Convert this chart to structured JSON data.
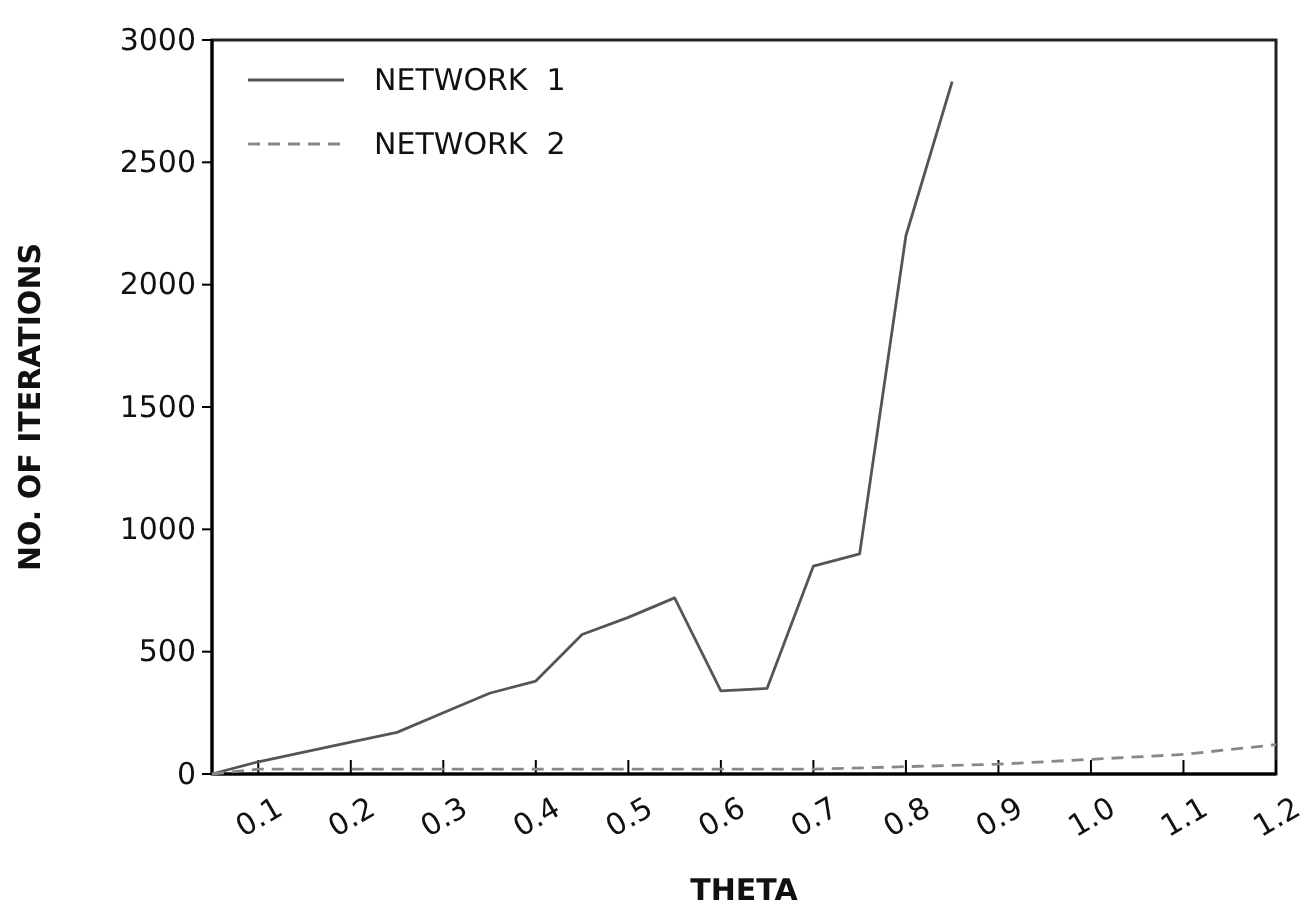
{
  "chart_data": {
    "type": "line",
    "xlabel": "THETA",
    "ylabel": "NO. OF ITERATIONS",
    "xlim": [
      0.05,
      1.2
    ],
    "xticks": [
      0.1,
      0.2,
      0.3,
      0.4,
      0.5,
      0.6,
      0.7,
      0.8,
      0.9,
      {
        "value": 1.0,
        "label": "1.0"
      },
      1.1,
      1.2
    ],
    "ylim": [
      0,
      3000
    ],
    "yticks": [
      0,
      500,
      1000,
      1500,
      2000,
      2500,
      3000
    ],
    "legend": "top left",
    "grid": false,
    "series": [
      {
        "name": "NETWORK  1",
        "color": "#555555",
        "line_style": "solid",
        "x": [
          0.05,
          0.1,
          0.2,
          0.25,
          0.3,
          0.35,
          0.4,
          0.45,
          0.5,
          0.55,
          0.6,
          0.65,
          0.7,
          0.75,
          0.8,
          0.85
        ],
        "values": [
          0,
          50,
          130,
          170,
          250,
          330,
          380,
          570,
          640,
          720,
          340,
          350,
          850,
          900,
          2200,
          2830
        ]
      },
      {
        "name": "NETWORK  2",
        "color": "#888888",
        "line_style": "dashed",
        "x": [
          0.05,
          0.1,
          0.2,
          0.3,
          0.4,
          0.5,
          0.6,
          0.7,
          0.8,
          0.9,
          1.0,
          1.1,
          1.2
        ],
        "values": [
          0,
          20,
          20,
          20,
          20,
          20,
          20,
          20,
          30,
          40,
          60,
          80,
          120
        ]
      }
    ]
  }
}
